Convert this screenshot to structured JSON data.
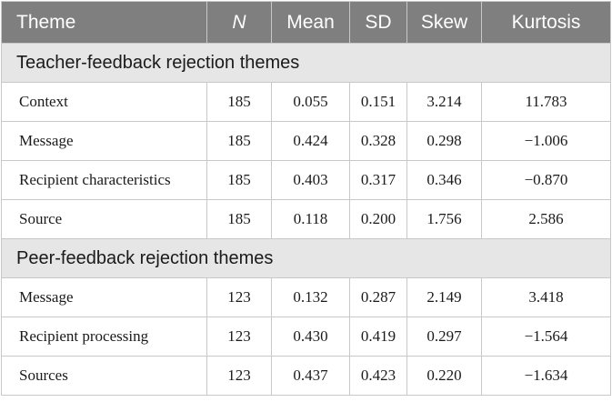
{
  "header": [
    "Theme",
    "N",
    "Mean",
    "SD",
    "Skew",
    "Kurtosis"
  ],
  "sections": [
    {
      "title": "Teacher-feedback rejection themes",
      "rows": [
        {
          "theme": "Context",
          "n": "185",
          "mean": "0.055",
          "sd": "0.151",
          "skew": "3.214",
          "kurtosis": "11.783"
        },
        {
          "theme": "Message",
          "n": "185",
          "mean": "0.424",
          "sd": "0.328",
          "skew": "0.298",
          "kurtosis": "−1.006"
        },
        {
          "theme": "Recipient characteristics",
          "n": "185",
          "mean": "0.403",
          "sd": "0.317",
          "skew": "0.346",
          "kurtosis": "−0.870"
        },
        {
          "theme": "Source",
          "n": "185",
          "mean": "0.118",
          "sd": "0.200",
          "skew": "1.756",
          "kurtosis": "2.586"
        }
      ]
    },
    {
      "title": "Peer-feedback rejection themes",
      "rows": [
        {
          "theme": "Message",
          "n": "123",
          "mean": "0.132",
          "sd": "0.287",
          "skew": "2.149",
          "kurtosis": "3.418"
        },
        {
          "theme": "Recipient processing",
          "n": "123",
          "mean": "0.430",
          "sd": "0.419",
          "skew": "0.297",
          "kurtosis": "−1.564"
        },
        {
          "theme": "Sources",
          "n": "123",
          "mean": "0.437",
          "sd": "0.423",
          "skew": "0.220",
          "kurtosis": "−1.634"
        }
      ]
    }
  ]
}
